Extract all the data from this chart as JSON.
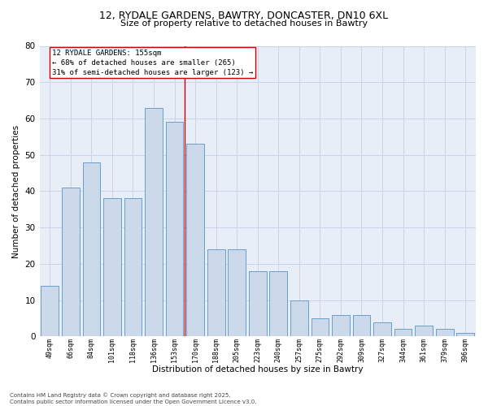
{
  "title_line1": "12, RYDALE GARDENS, BAWTRY, DONCASTER, DN10 6XL",
  "title_line2": "Size of property relative to detached houses in Bawtry",
  "xlabel": "Distribution of detached houses by size in Bawtry",
  "ylabel": "Number of detached properties",
  "categories": [
    "49sqm",
    "66sqm",
    "84sqm",
    "101sqm",
    "118sqm",
    "136sqm",
    "153sqm",
    "170sqm",
    "188sqm",
    "205sqm",
    "223sqm",
    "240sqm",
    "257sqm",
    "275sqm",
    "292sqm",
    "309sqm",
    "327sqm",
    "344sqm",
    "361sqm",
    "379sqm",
    "396sqm"
  ],
  "values": [
    14,
    41,
    48,
    38,
    38,
    63,
    59,
    53,
    24,
    24,
    18,
    18,
    10,
    5,
    6,
    6,
    4,
    2,
    3,
    2,
    1
  ],
  "bar_color": "#ccd9ea",
  "bar_edge_color": "#6b9ec8",
  "vline_position": 6.5,
  "property_line_label": "12 RYDALE GARDENS: 155sqm",
  "annotation_smaller": "← 68% of detached houses are smaller (265)",
  "annotation_larger": "31% of semi-detached houses are larger (123) →",
  "vline_color": "#cc0000",
  "ylim_max": 80,
  "yticks": [
    0,
    10,
    20,
    30,
    40,
    50,
    60,
    70,
    80
  ],
  "grid_color": "#c8d4e8",
  "bg_color": "#e8eef8",
  "footer_line1": "Contains HM Land Registry data © Crown copyright and database right 2025.",
  "footer_line2": "Contains public sector information licensed under the Open Government Licence v3.0."
}
